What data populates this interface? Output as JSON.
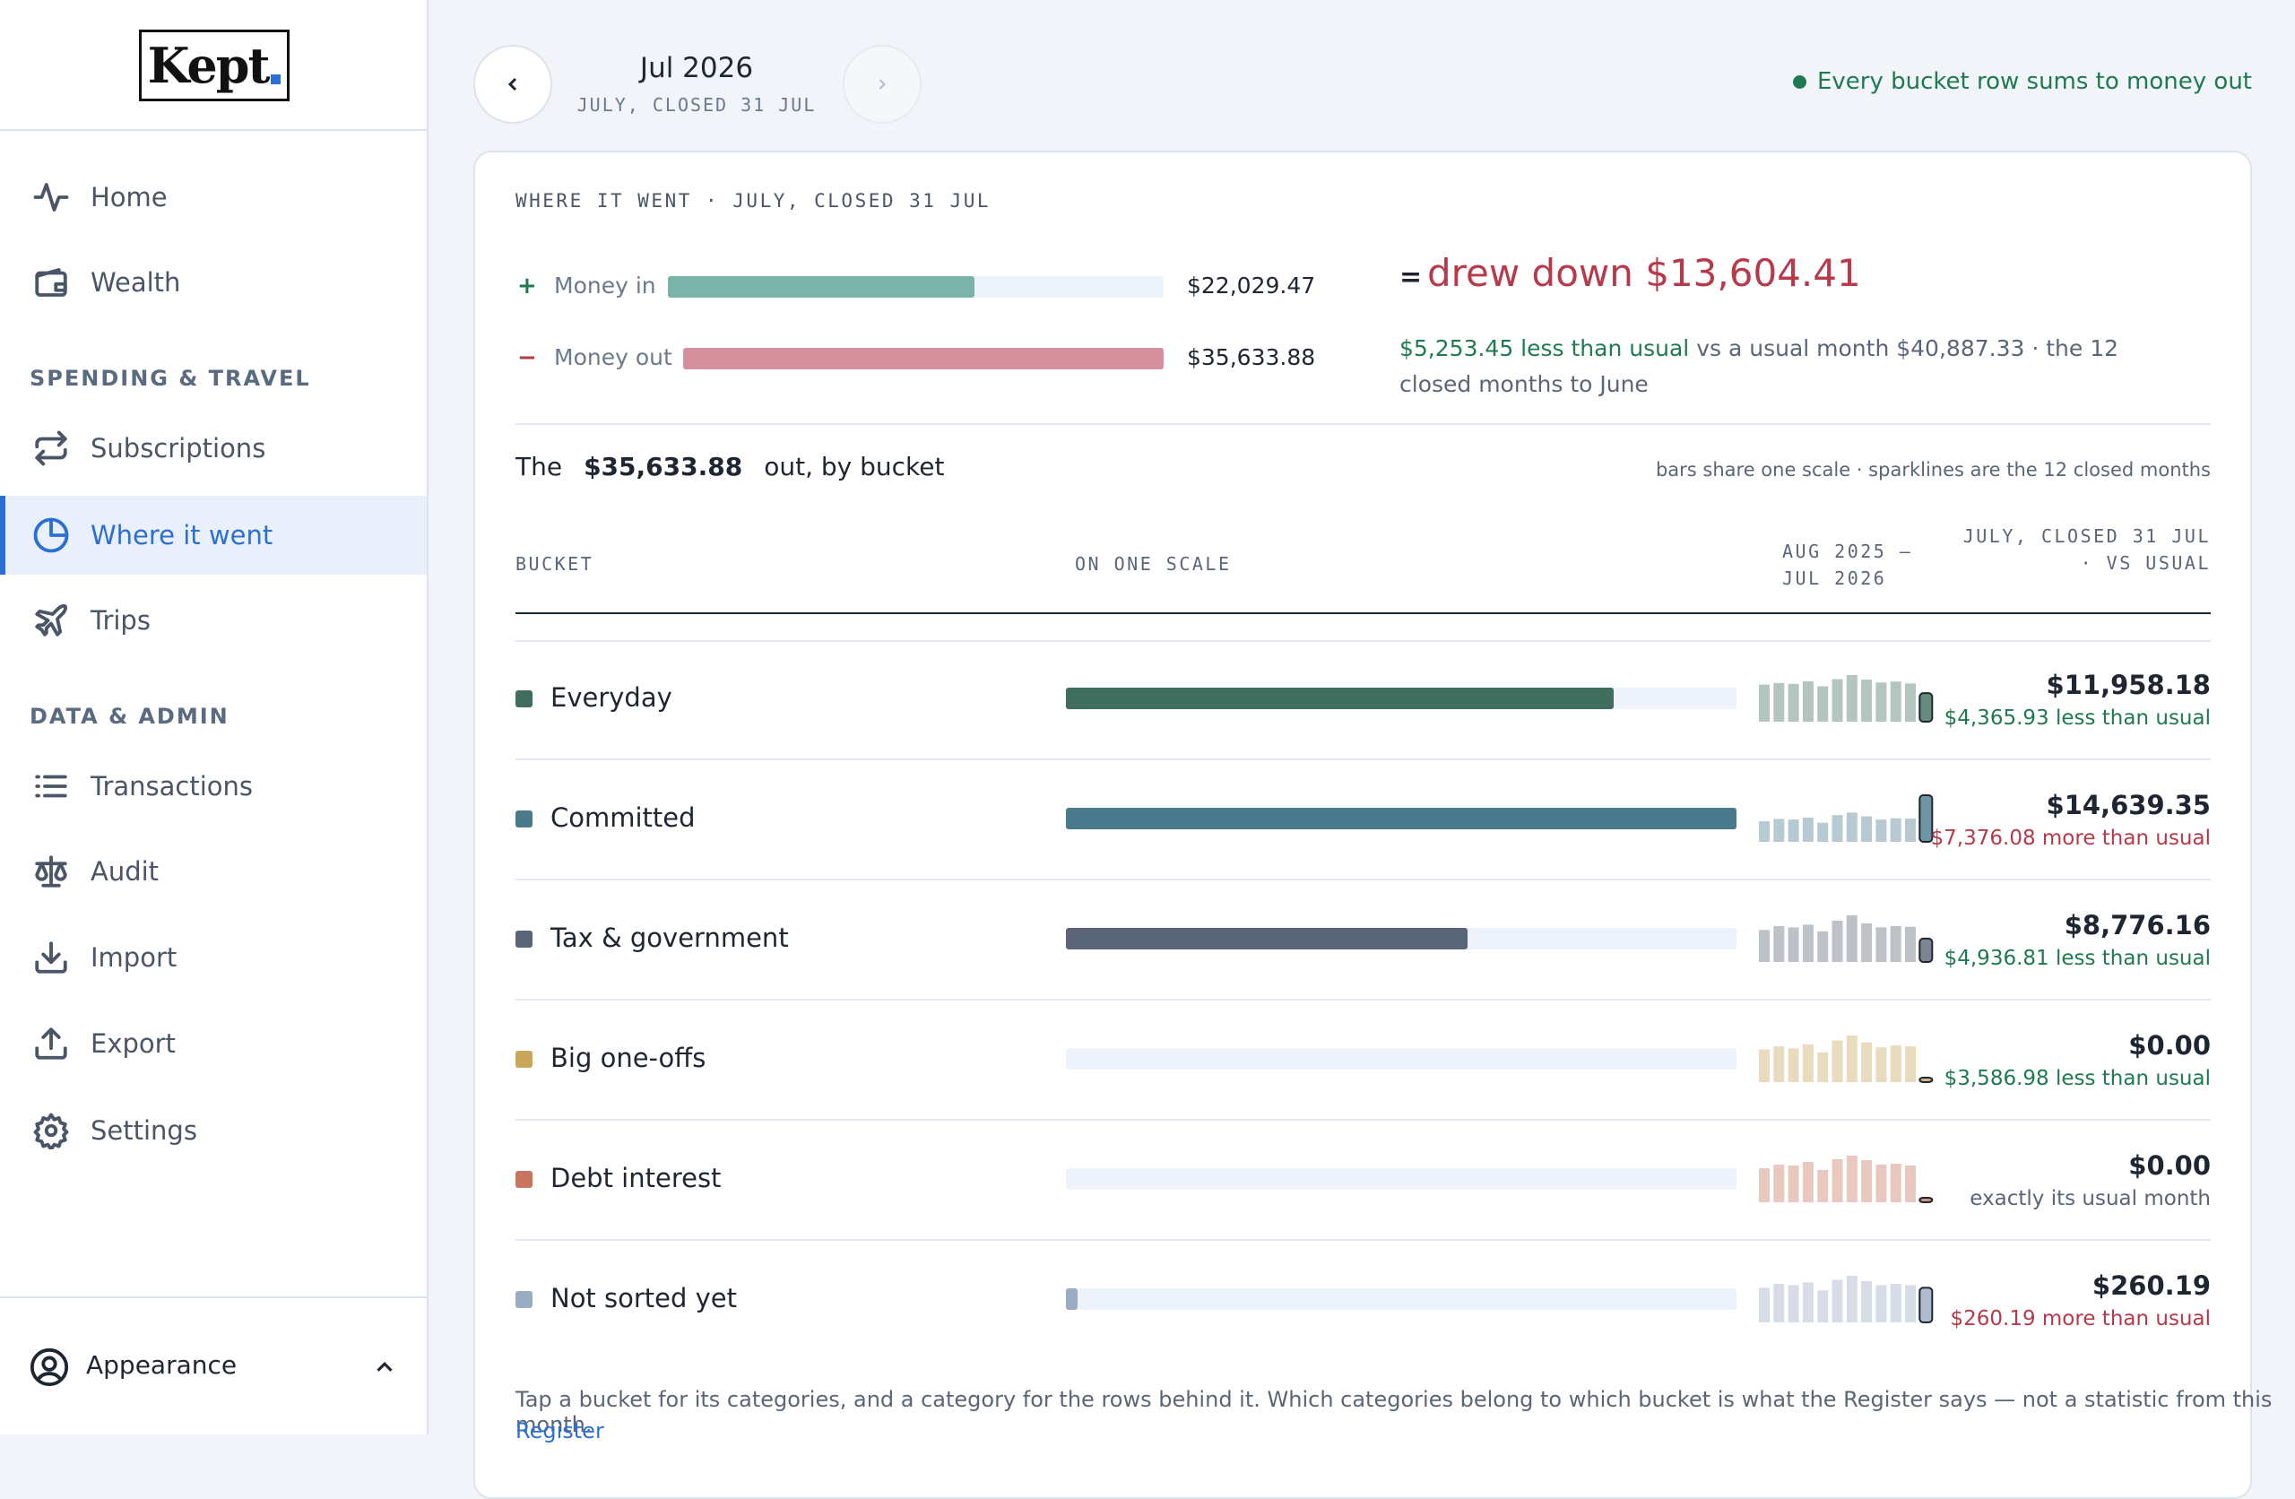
{
  "sidebar": {
    "logo": "Kept",
    "nav": [
      "Home",
      "Wealth"
    ],
    "sections": [
      {
        "title": "SPENDING & TRAVEL",
        "items": [
          "Subscriptions",
          "Where it went",
          "Trips"
        ]
      },
      {
        "title": "DATA & ADMIN",
        "items": [
          "Transactions",
          "Audit",
          "Import",
          "Export",
          "Settings"
        ]
      }
    ],
    "footer": "Appearance"
  },
  "header": {
    "month": "Jul 2026",
    "subtitle": "JULY, CLOSED 31 JUL",
    "status": "Every bucket row sums to money out"
  },
  "summary": {
    "heading": "WHERE IT WENT · JULY, CLOSED 31 JUL",
    "money_in": {
      "sign": "+",
      "label": "Money in",
      "color": "#7ab3a7",
      "amount": {
        "value": 22029.47,
        "label": "$22,029.47"
      }
    },
    "money_out": {
      "sign": "−",
      "label": "Money out",
      "color": "#d4909c",
      "amount": {
        "value": 35633.88,
        "label": "$35,633.88"
      }
    },
    "result_sign": "=",
    "result": "drew down $13,604.41",
    "delta": "$5,253.45 less than usual",
    "comparison": "vs a usual month $40,887.33 · the 12 closed months to June"
  },
  "breakdown": {
    "lead": "The",
    "total": "$35,633.88",
    "tail": "out, by bucket",
    "note": "bars share one scale · sparklines are the 12 closed months",
    "columns": [
      "BUCKET",
      "ON ONE SCALE",
      "AUG 2025 – JUL 2026",
      "JULY, CLOSED 31 JUL · VS USUAL"
    ],
    "buckets": [
      {
        "name": "Everyday",
        "color": "#3f6e5f",
        "amount": {
          "value": 11958.18,
          "label": "$11,958.18"
        },
        "vs_usual": "$4,365.93 less than usual",
        "vs_usual_color": "#1f7a50",
        "history": [
          15500,
          16200,
          15800,
          16900,
          14800,
          17800,
          19500,
          17600,
          16400,
          16800,
          16000
        ]
      },
      {
        "name": "Committed",
        "color": "#4a7a8c",
        "amount": {
          "value": 14639.35,
          "label": "$14,639.35"
        },
        "vs_usual": "$7,376.08 more than usual",
        "vs_usual_color": "#b83a4a",
        "history": [
          6500,
          7200,
          7000,
          7600,
          6000,
          8400,
          9200,
          8000,
          7000,
          7400,
          7300
        ]
      },
      {
        "name": "Tax & government",
        "color": "#5a6678",
        "amount": {
          "value": 8776.16,
          "label": "$8,776.16"
        },
        "vs_usual": "$4,936.81 less than usual",
        "vs_usual_color": "#1f7a50",
        "history": [
          12000,
          13500,
          13000,
          14000,
          11500,
          15500,
          17500,
          14500,
          13000,
          13500,
          13200
        ]
      },
      {
        "name": "Big one-offs",
        "color": "#c8a65a",
        "amount": {
          "value": 0,
          "label": "$0.00"
        },
        "vs_usual": "$3,586.98 less than usual",
        "vs_usual_color": "#1f7a50",
        "history": [
          3300,
          3600,
          3400,
          3800,
          3000,
          4200,
          4700,
          4000,
          3500,
          3700,
          3600
        ]
      },
      {
        "name": "Debt interest",
        "color": "#c87560",
        "amount": {
          "value": 0,
          "label": "$0.00"
        },
        "vs_usual": "exactly its usual month",
        "vs_usual_color": "#5a6678",
        "history": [
          380,
          420,
          410,
          450,
          360,
          480,
          520,
          470,
          420,
          430,
          410
        ]
      },
      {
        "name": "Not sorted yet",
        "color": "#9aabc4",
        "amount": {
          "value": 260.19,
          "label": "$260.19"
        },
        "vs_usual": "$260.19 more than usual",
        "vs_usual_color": "#b83a4a",
        "history": [
          260,
          290,
          280,
          300,
          240,
          320,
          350,
          310,
          280,
          290,
          280
        ]
      }
    ]
  },
  "footer": {
    "text": "Tap a bucket for its categories, and a category for the rows behind it. Which categories belong to which bucket is what the Register says — not a statistic from this month.",
    "link": "Register"
  }
}
